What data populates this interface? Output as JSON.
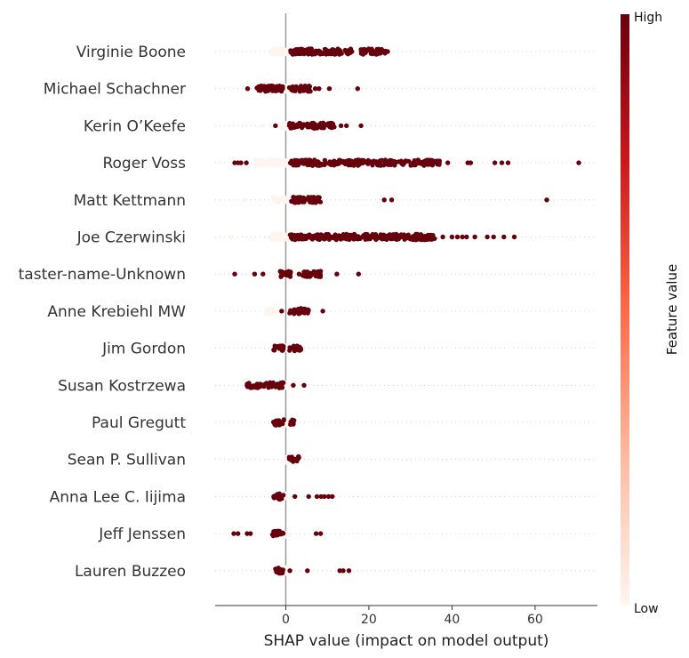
{
  "chart_data": {
    "type": "scatter",
    "subtype": "shap-beeswarm",
    "title": "",
    "xlabel": "SHAP value (impact on model output)",
    "xlim": [
      -17,
      75
    ],
    "xticks": [
      0,
      20,
      40,
      60
    ],
    "colorbar": {
      "label": "Feature value",
      "high_label": "High",
      "low_label": "Low",
      "colors": [
        "#fff5f0",
        "#fcbba1",
        "#fb6a4a",
        "#cb181d",
        "#67000d"
      ]
    },
    "features": [
      {
        "name": "Virginie Boone",
        "high": [
          [
            1,
            16
          ],
          [
            18,
            24
          ]
        ],
        "high_pts": [
          24.5,
          23.3,
          18.2
        ],
        "low": [
          [
            -4,
            0.5
          ]
        ],
        "low_pts": []
      },
      {
        "name": "Michael Schachner",
        "high": [
          [
            -7,
            -0.5
          ],
          [
            0.8,
            6
          ]
        ],
        "high_pts": [
          -9.2,
          7.1,
          8,
          10.5,
          17.3
        ],
        "low": [
          [
            -1.5,
            1.5
          ]
        ],
        "low_pts": []
      },
      {
        "name": "Kerin O’Keefe",
        "high": [
          [
            0.8,
            12
          ]
        ],
        "high_pts": [
          -2.5,
          13.3,
          14.6,
          18.1
        ],
        "low": [
          [
            -1.5,
            0.7
          ]
        ],
        "low_pts": [
          -5.5,
          -3.5
        ]
      },
      {
        "name": "Roger Voss",
        "high": [
          [
            1,
            27
          ],
          [
            27,
            37
          ]
        ],
        "high_pts": [
          -11.5,
          -12.3,
          -10.8,
          -9.5,
          39,
          43.8,
          44.5,
          50.3,
          52,
          53.5,
          70.5
        ],
        "low": [
          [
            -7.5,
            0.5
          ]
        ],
        "low_pts": []
      },
      {
        "name": "Matt Kettmann",
        "high": [
          [
            1,
            8.5
          ]
        ],
        "high_pts": [
          23.7,
          25.5,
          62.8
        ],
        "low": [
          [
            -3,
            0.5
          ]
        ],
        "low_pts": [
          -10
        ]
      },
      {
        "name": "Joe Czerwinski",
        "high": [
          [
            1,
            26
          ],
          [
            26,
            36
          ]
        ],
        "high_pts": [
          37.8,
          40,
          41.3,
          42.5,
          43.5,
          45.5,
          48.5,
          50,
          52.5,
          55
        ],
        "low": [
          [
            -3.5,
            0.5
          ]
        ],
        "low_pts": [
          -13
        ]
      },
      {
        "name": "taster-name-Unknown",
        "high": [
          [
            -1.5,
            1.2
          ],
          [
            4,
            8.5
          ]
        ],
        "high_pts": [
          -12.3,
          -7.5,
          -5.5,
          3.2,
          12.3,
          17.5
        ],
        "low": [
          [
            -1.5,
            1.5
          ]
        ],
        "low_pts": [
          -4,
          -2.5,
          5,
          6.5
        ]
      },
      {
        "name": "Anne Krebiehl MW",
        "high": [
          [
            0.8,
            5.5
          ]
        ],
        "high_pts": [
          -1,
          8.9
        ],
        "low": [
          [
            -5,
            -2
          ]
        ],
        "low_pts": []
      },
      {
        "name": "Jim Gordon",
        "high": [
          [
            -3,
            -0.4
          ],
          [
            0.8,
            3.7
          ]
        ],
        "high_pts": [],
        "low": [
          [
            -0.4,
            0.6
          ]
        ],
        "low_pts": []
      },
      {
        "name": "Susan Kostrzewa",
        "high": [
          [
            -9.5,
            -0.5
          ]
        ],
        "high_pts": [
          1.8,
          4.4
        ],
        "low": [
          [
            -0.5,
            0.5
          ]
        ],
        "low_pts": []
      },
      {
        "name": "Paul Gregutt",
        "high": [
          [
            -3,
            -0.4
          ],
          [
            0.8,
            2
          ]
        ],
        "high_pts": [],
        "low": [
          [
            -0.4,
            0.6
          ]
        ],
        "low_pts": []
      },
      {
        "name": "Sean P. Sullivan",
        "high": [
          [
            0.8,
            3.2
          ]
        ],
        "high_pts": [],
        "low": [
          [
            -0.8,
            0.6
          ]
        ],
        "low_pts": []
      },
      {
        "name": "Anna Lee C. Iijima",
        "high": [
          [
            -3,
            -0.5
          ]
        ],
        "high_pts": [
          2.2,
          5.5,
          7.5,
          8.5,
          9.3,
          10.3,
          11.2
        ],
        "low": [
          [
            -0.5,
            0.5
          ]
        ],
        "low_pts": []
      },
      {
        "name": "Jeff Jenssen",
        "high": [
          [
            -3.5,
            -0.5
          ]
        ],
        "high_pts": [
          -12.5,
          -11.5,
          -9.3,
          -8.5,
          7.3,
          8.4
        ],
        "low": [
          [
            -0.5,
            0.5
          ]
        ],
        "low_pts": []
      },
      {
        "name": "Lauren Buzzeo",
        "high": [
          [
            -3,
            -0.6
          ]
        ],
        "high_pts": [
          1,
          5.2,
          13,
          13.8,
          15.2
        ],
        "low": [
          [
            -0.6,
            0.6
          ]
        ],
        "low_pts": []
      }
    ]
  }
}
